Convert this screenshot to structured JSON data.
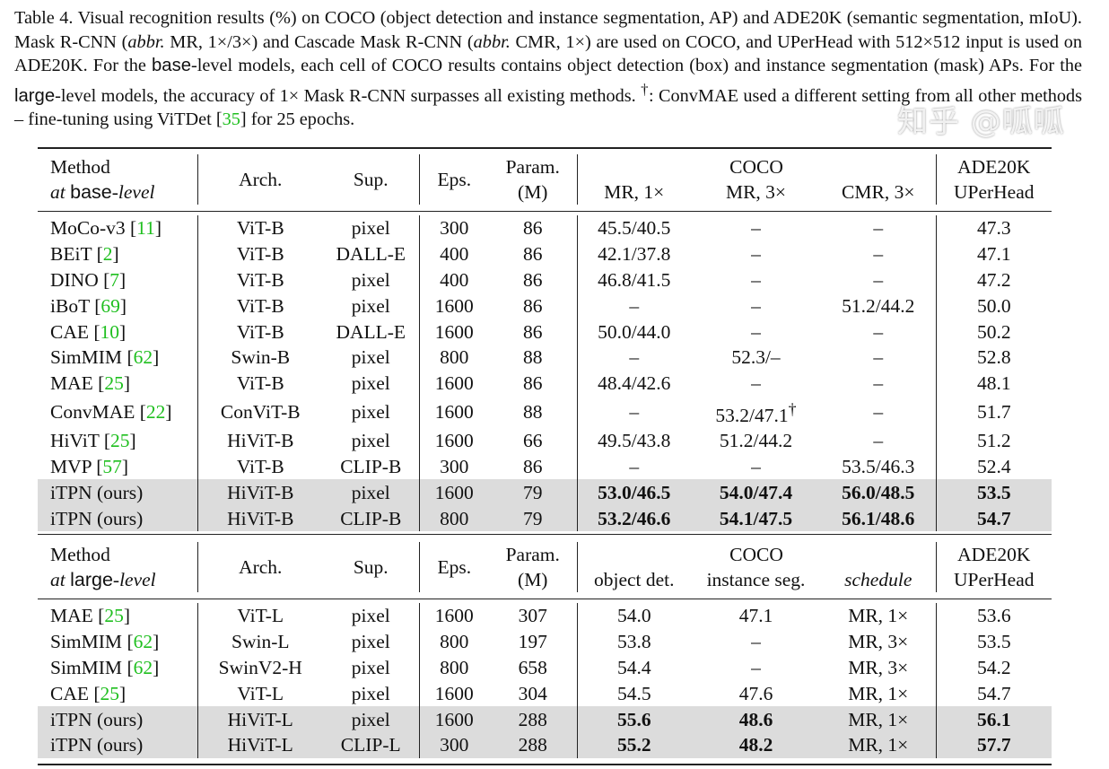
{
  "caption": {
    "p1": "Table 4. Visual recognition results (%) on COCO (object detection and instance segmentation, AP) and ADE20K (semantic segmentation, mIoU). Mask R-CNN (",
    "abbr1": "abbr.",
    "p2": " MR, 1×/3×) and Cascade Mask R-CNN (",
    "abbr2": "abbr.",
    "p3": " CMR, 1×) are used on COCO, and UPerHead with 512×512 input is used on ADE20K. For the ",
    "base": "base",
    "p4": "-level models, each cell of COCO results contains object detection (box) and instance segmentation (mask) APs. For the ",
    "large": "large",
    "p5": "-level models, the accuracy of 1× Mask R-CNN surpasses all existing methods. ",
    "dagger": "†",
    "p6": ": ConvMAE used a different setting from all other methods – fine-tuning using ViTDet [",
    "ref": "35",
    "p7": "] for 25 epochs."
  },
  "table1": {
    "header": {
      "method": "Method",
      "at": "at ",
      "level_word": "base",
      "level_suffix": "-level",
      "arch": "Arch.",
      "sup": "Sup.",
      "eps": "Eps.",
      "param1": "Param.",
      "param2": "(M)",
      "coco": "COCO",
      "c1": "MR, 1×",
      "c2": "MR, 3×",
      "c3": "CMR, 3×",
      "ade1": "ADE20K",
      "ade2": "UPerHead"
    },
    "rows": [
      {
        "method": "MoCo-v3",
        "ref": "11",
        "arch": "ViT-B",
        "sup": "pixel",
        "eps": "300",
        "param": "86",
        "c1": "45.5/40.5",
        "c2": "–",
        "c3": "–",
        "ade": "47.3"
      },
      {
        "method": "BEiT",
        "ref": "2",
        "arch": "ViT-B",
        "sup": "DALL-E",
        "eps": "400",
        "param": "86",
        "c1": "42.1/37.8",
        "c2": "–",
        "c3": "–",
        "ade": "47.1"
      },
      {
        "method": "DINO",
        "ref": "7",
        "arch": "ViT-B",
        "sup": "pixel",
        "eps": "400",
        "param": "86",
        "c1": "46.8/41.5",
        "c2": "–",
        "c3": "–",
        "ade": "47.2"
      },
      {
        "method": "iBoT",
        "ref": "69",
        "arch": "ViT-B",
        "sup": "pixel",
        "eps": "1600",
        "param": "86",
        "c1": "–",
        "c2": "–",
        "c3": "51.2/44.2",
        "ade": "50.0"
      },
      {
        "method": "CAE",
        "ref": "10",
        "arch": "ViT-B",
        "sup": "DALL-E",
        "eps": "1600",
        "param": "86",
        "c1": "50.0/44.0",
        "c2": "–",
        "c3": "–",
        "ade": "50.2"
      },
      {
        "method": "SimMIM",
        "ref": "62",
        "arch": "Swin-B",
        "sup": "pixel",
        "eps": "800",
        "param": "88",
        "c1": "–",
        "c2": "52.3/–",
        "c3": "–",
        "ade": "52.8"
      },
      {
        "method": "MAE",
        "ref": "25",
        "arch": "ViT-B",
        "sup": "pixel",
        "eps": "1600",
        "param": "86",
        "c1": "48.4/42.6",
        "c2": "–",
        "c3": "–",
        "ade": "48.1"
      },
      {
        "method": "ConvMAE",
        "ref": "22",
        "arch": "ConViT-B",
        "sup": "pixel",
        "eps": "1600",
        "param": "88",
        "c1": "–",
        "c2": "53.2/47.1",
        "c2sup": "†",
        "c3": "–",
        "ade": "51.7"
      },
      {
        "method": "HiViT",
        "ref": "25",
        "arch": "HiViT-B",
        "sup": "pixel",
        "eps": "1600",
        "param": "66",
        "c1": "49.5/43.8",
        "c2": "51.2/44.2",
        "c3": "–",
        "ade": "51.2"
      },
      {
        "method": "MVP",
        "ref": "57",
        "arch": "ViT-B",
        "sup": "CLIP-B",
        "eps": "300",
        "param": "86",
        "c1": "–",
        "c2": "–",
        "c3": "53.5/46.3",
        "ade": "52.4"
      },
      {
        "method": "iTPN (ours)",
        "arch": "HiViT-B",
        "sup": "pixel",
        "eps": "1600",
        "param": "79",
        "c1": "53.0/46.5",
        "c2": "54.0/47.4",
        "c3": "56.0/48.5",
        "ade": "53.5",
        "ours": true
      },
      {
        "method": "iTPN (ours)",
        "arch": "HiViT-B",
        "sup": "CLIP-B",
        "eps": "800",
        "param": "79",
        "c1": "53.2/46.6",
        "c2": "54.1/47.5",
        "c3": "56.1/48.6",
        "ade": "54.7",
        "ours": true
      }
    ]
  },
  "table2": {
    "header": {
      "method": "Method",
      "at": "at ",
      "level_word": "large",
      "level_suffix": "-level",
      "arch": "Arch.",
      "sup": "Sup.",
      "eps": "Eps.",
      "param1": "Param.",
      "param2": "(M)",
      "coco": "COCO",
      "c1": "object det.",
      "c2": "instance seg.",
      "c3": "schedule",
      "ade1": "ADE20K",
      "ade2": "UPerHead"
    },
    "rows": [
      {
        "method": "MAE",
        "ref": "25",
        "arch": "ViT-L",
        "sup": "pixel",
        "eps": "1600",
        "param": "307",
        "c1": "54.0",
        "c2": "47.1",
        "c3": "MR, 1×",
        "ade": "53.6"
      },
      {
        "method": "SimMIM",
        "ref": "62",
        "arch": "Swin-L",
        "sup": "pixel",
        "eps": "800",
        "param": "197",
        "c1": "53.8",
        "c2": "–",
        "c3": "MR, 3×",
        "ade": "53.5"
      },
      {
        "method": "SimMIM",
        "ref": "62",
        "arch": "SwinV2-H",
        "sup": "pixel",
        "eps": "800",
        "param": "658",
        "c1": "54.4",
        "c2": "–",
        "c3": "MR, 3×",
        "ade": "54.2"
      },
      {
        "method": "CAE",
        "ref": "25",
        "arch": "ViT-L",
        "sup": "pixel",
        "eps": "1600",
        "param": "304",
        "c1": "54.5",
        "c2": "47.6",
        "c3": "MR, 1×",
        "ade": "54.7"
      },
      {
        "method": "iTPN (ours)",
        "arch": "HiViT-L",
        "sup": "pixel",
        "eps": "1600",
        "param": "288",
        "c1": "55.6",
        "c2": "48.6",
        "c3": "MR, 1×",
        "ade": "56.1",
        "ours": true
      },
      {
        "method": "iTPN (ours)",
        "arch": "HiViT-L",
        "sup": "CLIP-L",
        "eps": "300",
        "param": "288",
        "c1": "55.2",
        "c2": "48.2",
        "c3": "MR, 1×",
        "ade": "57.7",
        "ours": true
      }
    ]
  },
  "watermark": "知乎 @呱呱",
  "colors": {
    "citation": "#1fbf1f",
    "highlight_row": "#dcdcdc"
  }
}
